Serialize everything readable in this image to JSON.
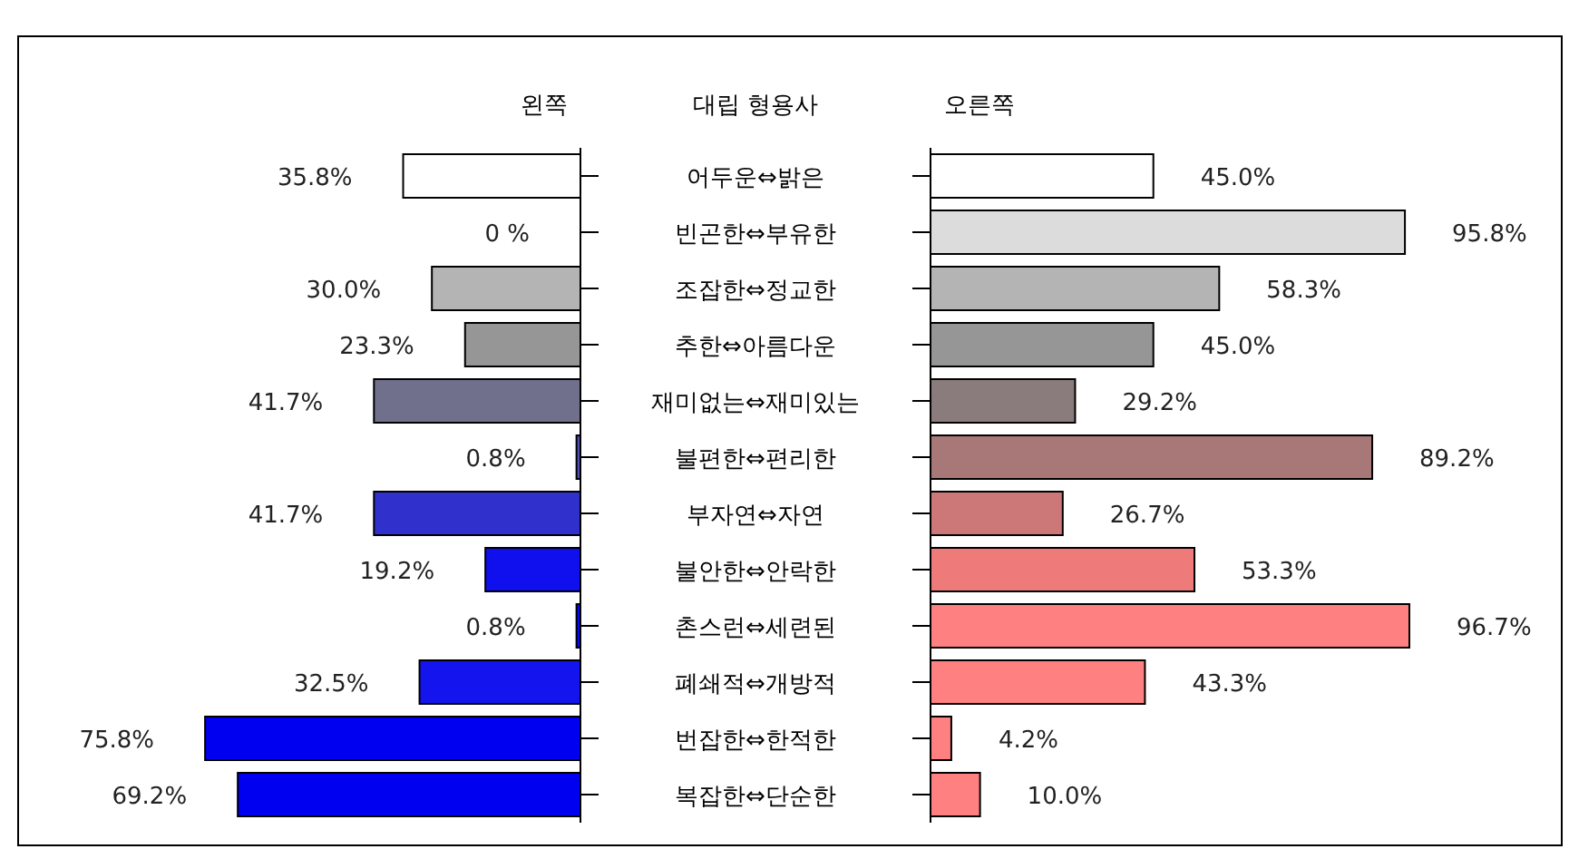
{
  "chart_data": [
    {
      "type": "bar",
      "orientation": "horizontal",
      "title": "왼쪽",
      "ylabel": "대립 형용사",
      "tick_labels": "y",
      "categories": [
        "어두운⇔밝은",
        "빈곤한⇔부유한",
        "조잡한⇔정교한",
        "추한⇔아름다운",
        "재미없는⇔재미있는",
        "불편한⇔편리한",
        "부자연⇔자연",
        "불안한⇔안락한",
        "촌스런⇔세련된",
        "폐쇄적⇔개방적",
        "번잡한⇔한적한",
        "복잡한⇔단순한"
      ],
      "values": [
        35.8,
        0,
        30.0,
        23.3,
        41.7,
        0.8,
        41.7,
        19.2,
        0.8,
        32.5,
        75.8,
        69.2
      ],
      "colors": [
        "#ffffff",
        "#dcdcdc",
        "#b4b4b4",
        "#969696",
        "#70708c",
        "#5050b8",
        "#3030cc",
        "#1010ee",
        "#0808f4",
        "#1414ee",
        "#0000f0",
        "#0000f0"
      ],
      "value_labels": [
        "35.8%",
        "0 %",
        "30.0%",
        "23.3%",
        "41.7%",
        "0.8%",
        "41.7%",
        "19.2%",
        "0.8%",
        "32.5%",
        "75.8%",
        "69.2%"
      ]
    },
    {
      "type": "bar",
      "orientation": "horizontal",
      "title": "오른쪽",
      "values": [
        45.0,
        95.8,
        58.3,
        45.0,
        29.2,
        89.2,
        26.7,
        53.3,
        96.7,
        43.3,
        4.2,
        10.0
      ],
      "colors": [
        "#ffffff",
        "#dcdcdc",
        "#b4b4b4",
        "#969696",
        "#8a7c7c",
        "#a87878",
        "#cc7878",
        "#ee7a7a",
        "#ff8080",
        "#ff8080",
        "#ff8080",
        "#ff8080"
      ],
      "value_labels": [
        "45.0%",
        "95.8%",
        "58.3%",
        "45.0%",
        "29.2%",
        "89.2%",
        "26.7%",
        "53.3%",
        "96.7%",
        "43.3%",
        "4.2%",
        "10.0%"
      ]
    }
  ]
}
